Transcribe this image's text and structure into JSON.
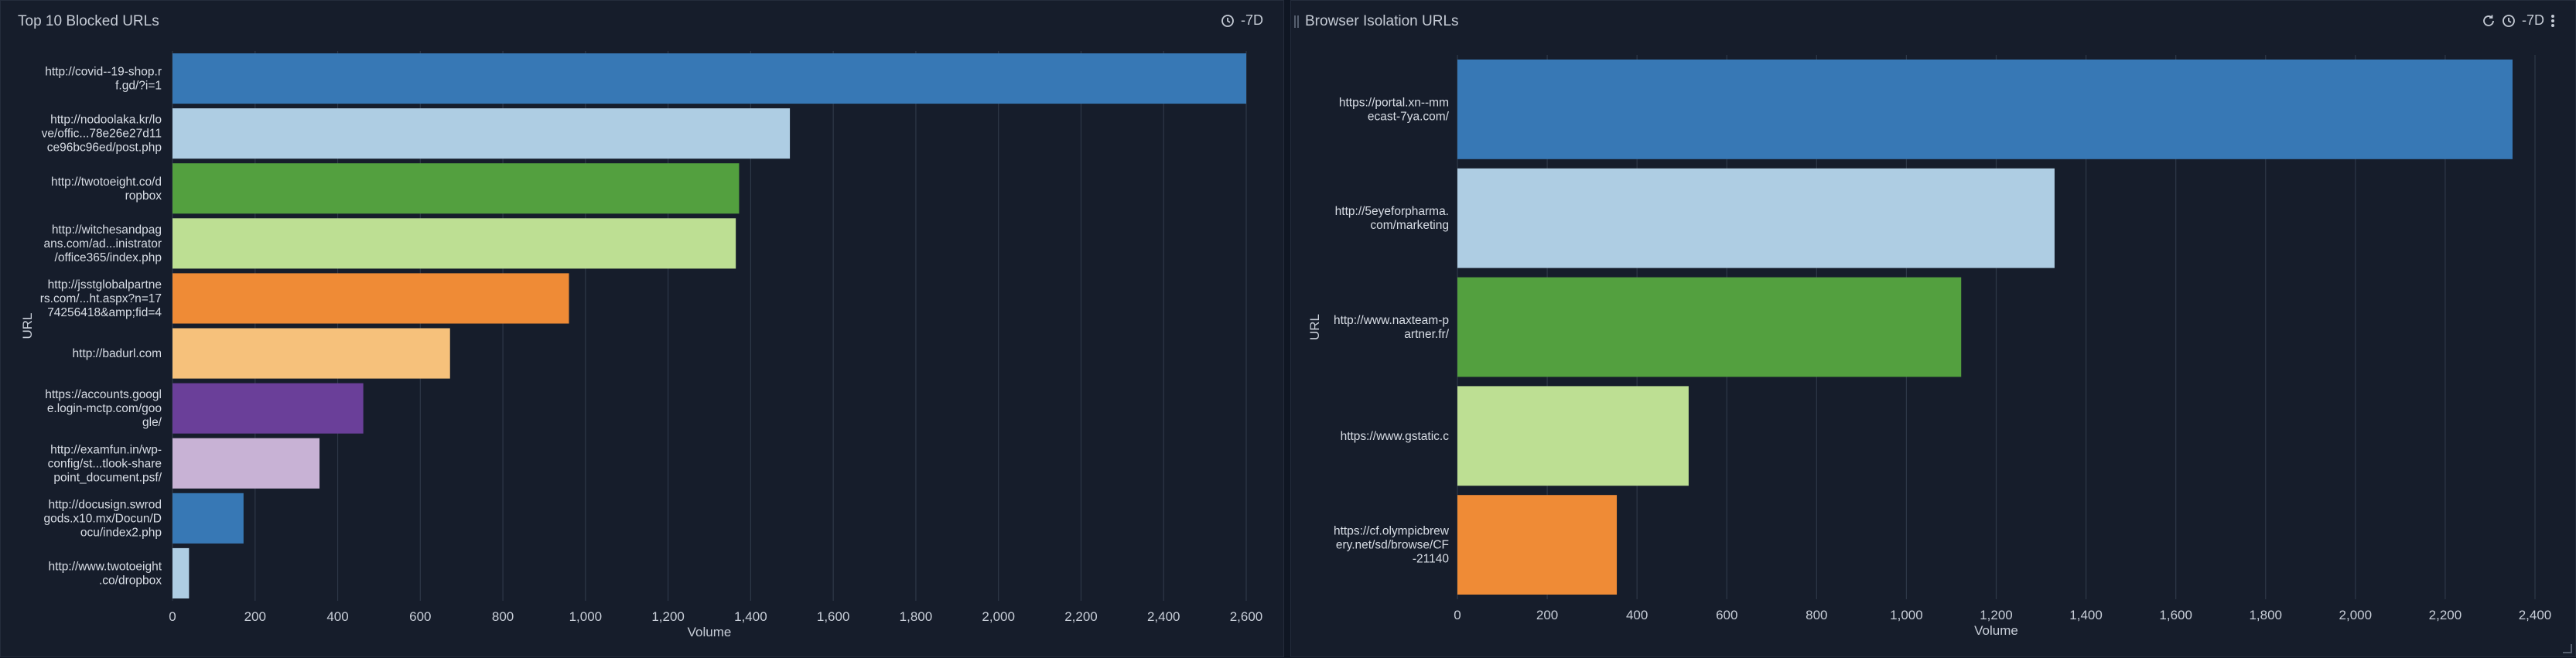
{
  "left_panel": {
    "title": "Top 10 Blocked URLs",
    "time_range": "-7D",
    "icons": [
      "clock-icon"
    ]
  },
  "right_panel": {
    "title": "Browser Isolation URLs",
    "time_range": "-7D",
    "icons": [
      "refresh-icon",
      "clock-icon",
      "more-vertical-icon"
    ]
  },
  "colors": {
    "background": "#161d2b",
    "grid": "#2e3848",
    "text": "#c8ced8",
    "palette": [
      "#3778b5",
      "#aecde3",
      "#53a03f",
      "#bddf93",
      "#ef8b36",
      "#f6c17b",
      "#6a3f99",
      "#c8b2d5",
      "#3778b5",
      "#aecde3"
    ]
  },
  "chart_data": [
    {
      "type": "bar",
      "orientation": "horizontal",
      "title": "Top 10 Blocked URLs",
      "xlabel": "Volume",
      "ylabel": "URL",
      "xlim": [
        0,
        2600
      ],
      "xticks": [
        "0",
        "200",
        "400",
        "600",
        "800",
        "1,000",
        "1,200",
        "1,400",
        "1,600",
        "1,800",
        "2,000",
        "2,200",
        "2,400",
        "2,600"
      ],
      "grid": true,
      "categories": [
        [
          "http://covid--19-shop.r",
          "f.gd/?i=1"
        ],
        [
          "http://nodoolaka.kr/lo",
          "ve/offic...78e26e27d11",
          "ce96bc96ed/post.php"
        ],
        [
          "http://twotoeight.co/d",
          "ropbox"
        ],
        [
          "http://witchesandpag",
          "ans.com/ad...inistrator",
          "/office365/index.php"
        ],
        [
          "http://jsstglobalpartne",
          "rs.com/...ht.aspx?n=17",
          "74256418&amp;fid=4"
        ],
        [
          "http://badurl.com"
        ],
        [
          "https://accounts.googl",
          "e.login-mctp.com/goo",
          "gle/"
        ],
        [
          "http://examfun.in/wp-",
          "config/st...tlook-share",
          "point_document.psf/"
        ],
        [
          "http://docusign.swrod",
          "gods.x10.mx/Docun/D",
          "ocu/index2.php"
        ],
        [
          "http://www.twotoeight",
          ".co/dropbox"
        ]
      ],
      "values": [
        2600,
        1495,
        1372,
        1364,
        960,
        672,
        462,
        356,
        172,
        40
      ]
    },
    {
      "type": "bar",
      "orientation": "horizontal",
      "title": "Browser Isolation URLs",
      "xlabel": "Volume",
      "ylabel": "URL",
      "xlim": [
        0,
        2400
      ],
      "xticks": [
        "0",
        "200",
        "400",
        "600",
        "800",
        "1,000",
        "1,200",
        "1,400",
        "1,600",
        "1,800",
        "2,000",
        "2,200",
        "2,400"
      ],
      "grid": true,
      "categories": [
        [
          "https://portal.xn--mm",
          "ecast-7ya.com/"
        ],
        [
          "http://5eyeforpharma.",
          "com/marketing"
        ],
        [
          "http://www.naxteam-p",
          "artner.fr/"
        ],
        [
          "https://www.gstatic.c"
        ],
        [
          "https://cf.olympicbrew",
          "ery.net/sd/browse/CF",
          "-21140"
        ]
      ],
      "values": [
        2350,
        1330,
        1122,
        515,
        355
      ]
    }
  ]
}
